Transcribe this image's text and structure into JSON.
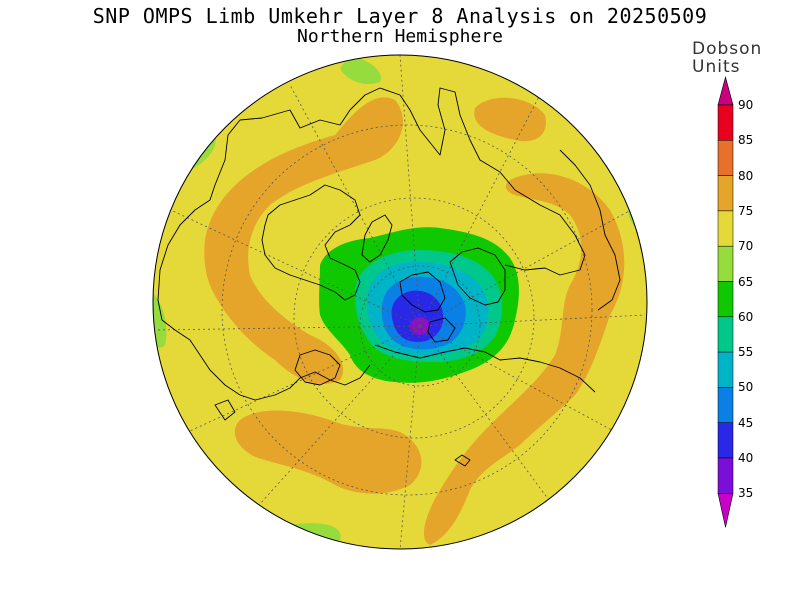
{
  "title": "SNP OMPS Limb Umkehr Layer 8 Analysis on 20250509",
  "subtitle": "Northern Hemisphere",
  "colorbar": {
    "units_line1": "Dobson",
    "units_line2": "Units",
    "levels": [
      {
        "value": "90",
        "color": "#c8007d"
      },
      {
        "value": "85",
        "color": "#e8001e"
      },
      {
        "value": "80",
        "color": "#e8702a"
      },
      {
        "value": "75",
        "color": "#e5a52a"
      },
      {
        "value": "70",
        "color": "#e5d93a"
      },
      {
        "value": "65",
        "color": "#95dc3c"
      },
      {
        "value": "60",
        "color": "#10c800"
      },
      {
        "value": "55",
        "color": "#00c88a"
      },
      {
        "value": "50",
        "color": "#00b4c8"
      },
      {
        "value": "45",
        "color": "#0a80e6"
      },
      {
        "value": "40",
        "color": "#2828e6"
      },
      {
        "value": "35",
        "color": "#7a10d8"
      }
    ],
    "top_triangle_color": "#c8007d",
    "bottom_triangle_color": "#c800c8"
  },
  "map": {
    "projection": "polar stereographic, north pole",
    "background_color": "#e5d93a",
    "minimum_center_color": "#8a10c8"
  }
}
